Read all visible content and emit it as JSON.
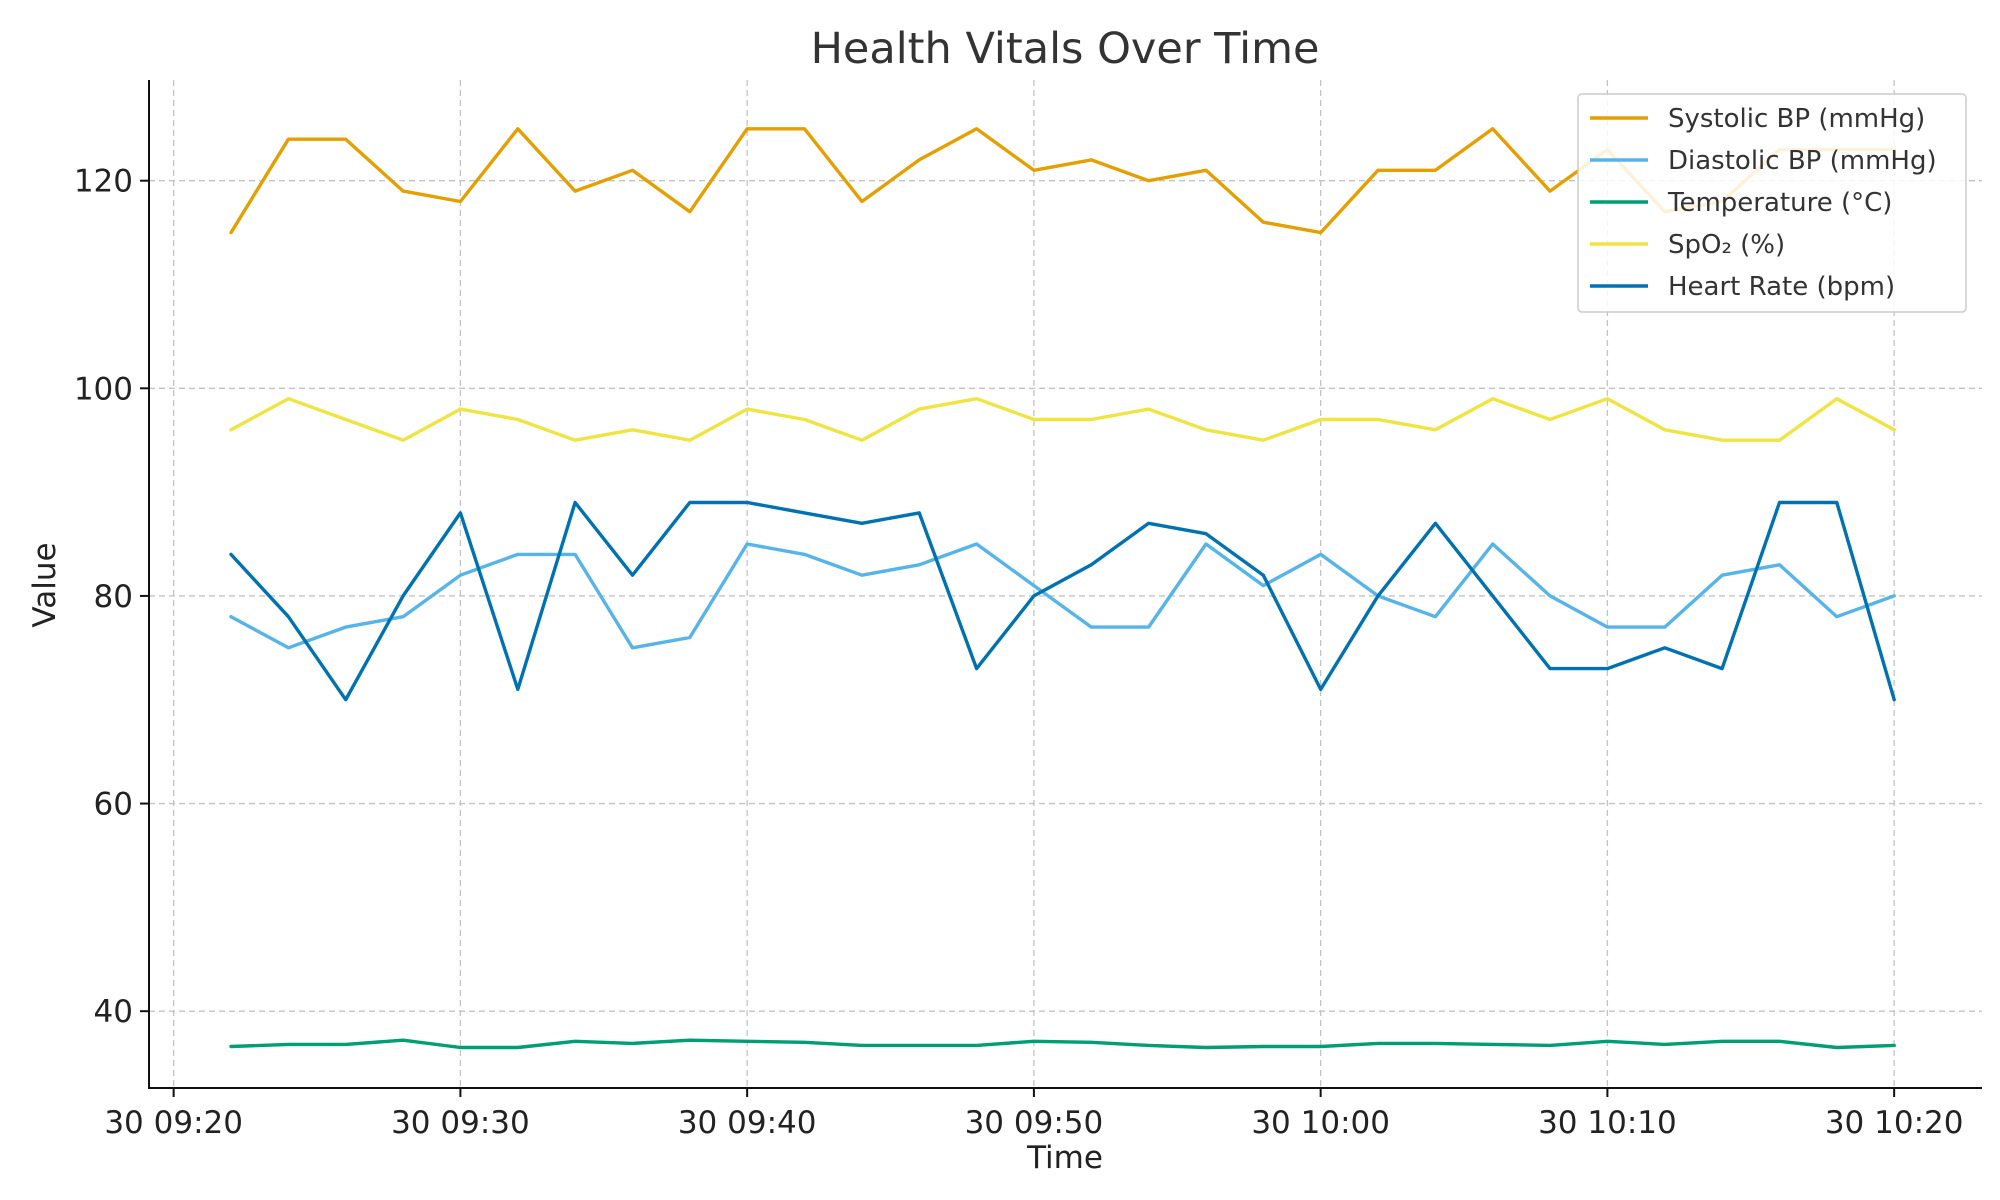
{
  "chart_data": {
    "type": "line",
    "title": "Health Vitals Over Time",
    "xlabel": "Time",
    "ylabel": "Value",
    "x": [
      "09:22",
      "09:24",
      "09:26",
      "09:28",
      "09:30",
      "09:32",
      "09:34",
      "09:36",
      "09:38",
      "09:40",
      "09:42",
      "09:44",
      "09:46",
      "09:48",
      "09:50",
      "09:52",
      "09:54",
      "09:56",
      "09:58",
      "10:00",
      "10:02",
      "10:04",
      "10:06",
      "10:08",
      "10:10",
      "10:12",
      "10:14",
      "10:16",
      "10:18",
      "10:20"
    ],
    "x_ticks": [
      "30 09:20",
      "30 09:30",
      "30 09:40",
      "30 09:50",
      "30 10:00",
      "30 10:10",
      "30 10:20"
    ],
    "y_ticks": [
      40,
      60,
      80,
      100,
      120
    ],
    "ylim": [
      32.6,
      129.7
    ],
    "grid": true,
    "legend_position": "top-right",
    "series": [
      {
        "name": "Systolic BP (mmHg)",
        "color": "#E69F00",
        "values": [
          115,
          124,
          124,
          119,
          118,
          125,
          119,
          121,
          117,
          125,
          125,
          118,
          122,
          125,
          121,
          122,
          120,
          121,
          116,
          115,
          121,
          121,
          125,
          119,
          123,
          117,
          118,
          123,
          123,
          123
        ]
      },
      {
        "name": "Diastolic BP (mmHg)",
        "color": "#56B4E9",
        "values": [
          78,
          75,
          77,
          78,
          82,
          84,
          84,
          75,
          76,
          85,
          84,
          82,
          83,
          85,
          81,
          77,
          77,
          85,
          81,
          84,
          80,
          78,
          85,
          80,
          77,
          77,
          82,
          83,
          78,
          80
        ]
      },
      {
        "name": "Temperature (°C)",
        "color": "#009E73",
        "values": [
          36.6,
          36.8,
          36.8,
          37.2,
          36.5,
          36.5,
          37.1,
          36.9,
          37.2,
          37.1,
          37.0,
          36.7,
          36.7,
          36.7,
          37.1,
          37.0,
          36.7,
          36.5,
          36.6,
          36.6,
          36.9,
          36.9,
          36.8,
          36.7,
          37.1,
          36.8,
          37.1,
          37.1,
          36.5,
          36.7
        ]
      },
      {
        "name": "SpO₂ (%)",
        "color": "#F0E442",
        "values": [
          96,
          99,
          97,
          95,
          98,
          97,
          95,
          96,
          95,
          98,
          97,
          95,
          98,
          99,
          97,
          97,
          98,
          96,
          95,
          97,
          97,
          96,
          99,
          97,
          99,
          96,
          95,
          95,
          99,
          96
        ]
      },
      {
        "name": "Heart Rate (bpm)",
        "color": "#0072B2",
        "values": [
          84,
          78,
          70,
          80,
          88,
          71,
          89,
          82,
          89,
          89,
          88,
          87,
          88,
          73,
          80,
          83,
          87,
          86,
          82,
          71,
          80,
          87,
          80,
          73,
          73,
          75,
          73,
          89,
          89,
          70
        ]
      }
    ]
  }
}
